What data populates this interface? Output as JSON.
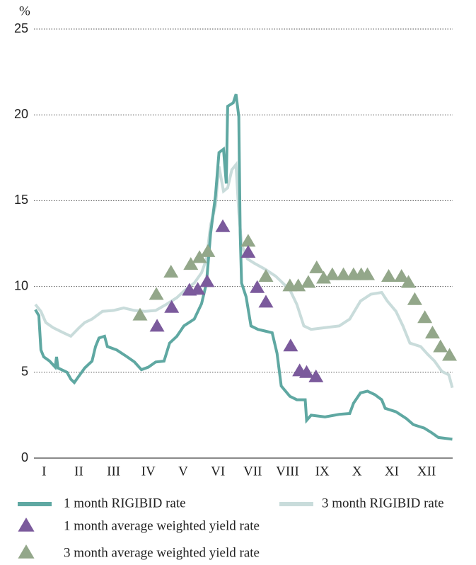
{
  "chart_data": {
    "type": "line",
    "ylabel": "%",
    "xlim": [
      0,
      12
    ],
    "xticks": [
      {
        "value": 0.25,
        "label": "I"
      },
      {
        "value": 1.25,
        "label": "II"
      },
      {
        "value": 2.25,
        "label": "III"
      },
      {
        "value": 3.25,
        "label": "IV"
      },
      {
        "value": 4.25,
        "label": "V"
      },
      {
        "value": 5.25,
        "label": "VI"
      },
      {
        "value": 6.25,
        "label": "VII"
      },
      {
        "value": 7.25,
        "label": "VIII"
      },
      {
        "value": 8.25,
        "label": "IX"
      },
      {
        "value": 9.25,
        "label": "X"
      },
      {
        "value": 10.25,
        "label": "XI"
      },
      {
        "value": 11.25,
        "label": "XII"
      }
    ],
    "ylim": [
      0,
      25
    ],
    "yticks": [
      0,
      5,
      10,
      15,
      20,
      25
    ],
    "grid": true,
    "series": [
      {
        "name": "1 month RIGIBID rate",
        "color": "#5fa8a2",
        "style": "line",
        "x": [
          0,
          0.1,
          0.16,
          0.24,
          0.41,
          0.57,
          0.61,
          0.65,
          0.91,
          1.02,
          1.12,
          1.26,
          1.42,
          1.63,
          1.73,
          1.83,
          1.99,
          2.07,
          2.34,
          2.64,
          2.85,
          3.05,
          3.25,
          3.46,
          3.7,
          3.86,
          4.07,
          4.27,
          4.57,
          4.78,
          4.92,
          5.04,
          5.18,
          5.28,
          5.41,
          5.49,
          5.53,
          5.69,
          5.77,
          5.85,
          5.89,
          5.93,
          6.06,
          6.2,
          6.4,
          6.61,
          6.81,
          6.95,
          7.07,
          7.32,
          7.52,
          7.76,
          7.8,
          7.93,
          8.33,
          8.74,
          9.04,
          9.15,
          9.35,
          9.55,
          9.76,
          9.96,
          10.06,
          10.37,
          10.67,
          10.87,
          11.18,
          11.38,
          11.59,
          11.99
        ],
        "values": [
          8.65,
          8.3,
          6.3,
          5.9,
          5.65,
          5.3,
          5.9,
          5.25,
          5.0,
          4.6,
          4.4,
          4.8,
          5.25,
          5.65,
          6.5,
          7.0,
          7.1,
          6.5,
          6.3,
          5.9,
          5.6,
          5.15,
          5.3,
          5.6,
          5.65,
          6.7,
          7.1,
          7.7,
          8.1,
          9.0,
          10.2,
          13.1,
          15.3,
          17.8,
          18.0,
          16.0,
          20.5,
          20.7,
          21.2,
          19.9,
          13.1,
          10.2,
          9.4,
          7.7,
          7.5,
          7.4,
          7.3,
          6.1,
          4.2,
          3.6,
          3.4,
          3.4,
          2.2,
          2.5,
          2.4,
          2.55,
          2.6,
          3.2,
          3.8,
          3.9,
          3.7,
          3.4,
          2.9,
          2.7,
          2.3,
          1.95,
          1.75,
          1.5,
          1.2,
          1.1
        ]
      },
      {
        "name": "3 month RIGIBID rate",
        "color": "#c9dcdb",
        "style": "line",
        "x": [
          0,
          0.16,
          0.3,
          0.51,
          0.81,
          1.02,
          1.26,
          1.42,
          1.63,
          1.93,
          2.24,
          2.54,
          2.85,
          3.15,
          3.46,
          3.76,
          4.07,
          4.31,
          4.57,
          4.78,
          4.92,
          5.04,
          5.18,
          5.28,
          5.41,
          5.53,
          5.65,
          5.77,
          5.85,
          5.93,
          6.1,
          6.3,
          6.61,
          6.91,
          7.32,
          7.52,
          7.72,
          7.93,
          8.33,
          8.74,
          9.04,
          9.35,
          9.65,
          9.96,
          10.12,
          10.37,
          10.57,
          10.77,
          11.08,
          11.28,
          11.48,
          11.69,
          11.89,
          11.99
        ],
        "values": [
          8.95,
          8.55,
          7.9,
          7.6,
          7.3,
          7.1,
          7.6,
          7.9,
          8.1,
          8.55,
          8.6,
          8.75,
          8.6,
          8.55,
          8.6,
          8.95,
          9.35,
          9.8,
          10.2,
          10.8,
          11.6,
          13.6,
          14.7,
          17.0,
          15.55,
          15.75,
          16.8,
          17.1,
          14.3,
          12.45,
          11.6,
          11.35,
          11.0,
          10.6,
          9.8,
          8.95,
          7.7,
          7.5,
          7.6,
          7.7,
          8.1,
          9.15,
          9.55,
          9.65,
          9.15,
          8.55,
          7.7,
          6.7,
          6.5,
          6.05,
          5.65,
          5.05,
          4.85,
          4.1
        ]
      },
      {
        "name": "1 month average weighted yield rate",
        "color": "#7b5a9c",
        "style": "triangle",
        "x": [
          3.5,
          3.92,
          4.43,
          4.67,
          4.94,
          5.39,
          6.12,
          6.38,
          6.63,
          7.34,
          7.6,
          7.8,
          8.07
        ],
        "values": [
          7.7,
          8.8,
          9.8,
          9.85,
          10.3,
          13.5,
          12.0,
          9.95,
          9.1,
          6.55,
          5.1,
          5.0,
          4.75
        ]
      },
      {
        "name": "3 month average weighted yield rate",
        "color": "#93a78a",
        "style": "triangle",
        "x": [
          3.01,
          3.48,
          3.9,
          4.47,
          4.72,
          4.96,
          6.12,
          6.63,
          7.32,
          7.56,
          7.85,
          8.09,
          8.29,
          8.54,
          8.86,
          9.15,
          9.37,
          9.55,
          10.16,
          10.53,
          10.73,
          10.91,
          11.2,
          11.42,
          11.65,
          11.91
        ],
        "values": [
          8.35,
          9.55,
          10.85,
          11.3,
          11.7,
          12.05,
          12.65,
          10.6,
          10.05,
          10.05,
          10.25,
          11.1,
          10.5,
          10.7,
          10.7,
          10.7,
          10.7,
          10.7,
          10.6,
          10.6,
          10.25,
          9.25,
          8.2,
          7.3,
          6.5,
          6.0
        ]
      }
    ]
  }
}
